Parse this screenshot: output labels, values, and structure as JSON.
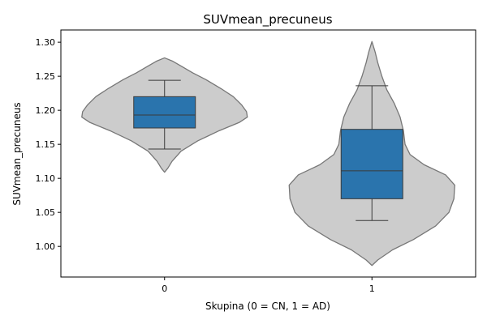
{
  "chart_data": {
    "type": "violin",
    "title": "SUVmean_precuneus",
    "xlabel": "Skupina (0 = CN, 1 = AD)",
    "ylabel": "SUVmean_precuneus",
    "categories": [
      "0",
      "1"
    ],
    "ylim": [
      0.955,
      1.318
    ],
    "yticks": [
      "1.00",
      "1.05",
      "1.10",
      "1.15",
      "1.20",
      "1.25",
      "1.30"
    ],
    "grid": false,
    "colors": {
      "violin_fill": "#cccccc",
      "violin_edge": "#777777",
      "box_fill": "#2a74ad",
      "box_edge": "#3a3a3a"
    },
    "groups": [
      {
        "category": "0",
        "violin_min": 1.109,
        "violin_max": 1.277,
        "density": [
          [
            1.109,
            0.0
          ],
          [
            1.115,
            0.04
          ],
          [
            1.125,
            0.09
          ],
          [
            1.14,
            0.2
          ],
          [
            1.155,
            0.4
          ],
          [
            1.17,
            0.66
          ],
          [
            1.182,
            0.9
          ],
          [
            1.19,
            1.0
          ],
          [
            1.198,
            0.99
          ],
          [
            1.208,
            0.93
          ],
          [
            1.22,
            0.83
          ],
          [
            1.232,
            0.68
          ],
          [
            1.245,
            0.5
          ],
          [
            1.255,
            0.34
          ],
          [
            1.265,
            0.2
          ],
          [
            1.272,
            0.1
          ],
          [
            1.277,
            0.0
          ]
        ],
        "whisker_low": 1.143,
        "q1": 1.174,
        "median": 1.193,
        "q3": 1.22,
        "whisker_high": 1.244
      },
      {
        "category": "1",
        "violin_min": 0.972,
        "violin_max": 1.301,
        "density": [
          [
            0.972,
            0.0
          ],
          [
            0.98,
            0.07
          ],
          [
            0.995,
            0.25
          ],
          [
            1.01,
            0.5
          ],
          [
            1.03,
            0.77
          ],
          [
            1.05,
            0.93
          ],
          [
            1.07,
            0.99
          ],
          [
            1.09,
            1.0
          ],
          [
            1.105,
            0.89
          ],
          [
            1.12,
            0.63
          ],
          [
            1.135,
            0.46
          ],
          [
            1.15,
            0.4
          ],
          [
            1.17,
            0.38
          ],
          [
            1.19,
            0.34
          ],
          [
            1.21,
            0.27
          ],
          [
            1.23,
            0.18
          ],
          [
            1.25,
            0.12
          ],
          [
            1.27,
            0.07
          ],
          [
            1.285,
            0.04
          ],
          [
            1.301,
            0.0
          ]
        ],
        "whisker_low": 1.038,
        "q1": 1.07,
        "median": 1.111,
        "q3": 1.172,
        "whisker_high": 1.236
      }
    ]
  }
}
